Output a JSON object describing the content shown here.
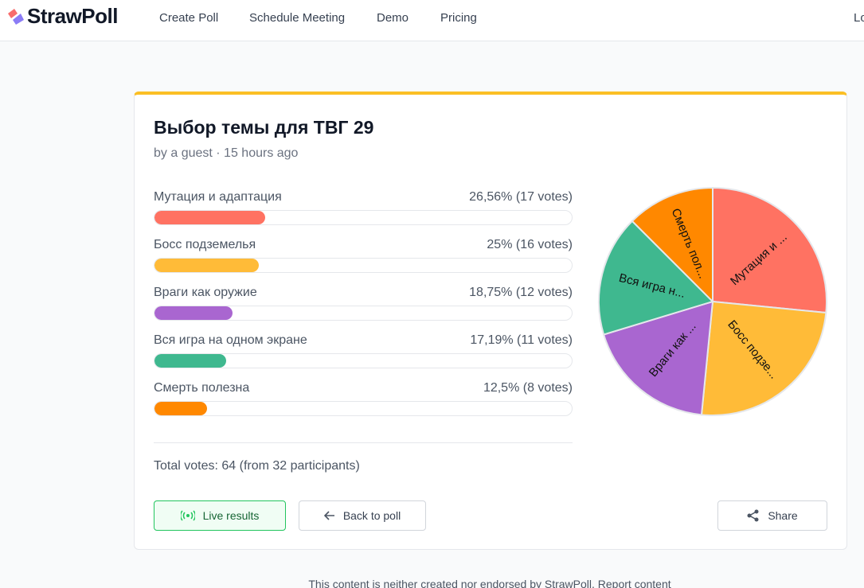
{
  "nav": {
    "logo": "StrawPoll",
    "links": [
      "Create Poll",
      "Schedule Meeting",
      "Demo",
      "Pricing"
    ],
    "login": "Lo"
  },
  "poll": {
    "title": "Выбор темы для ТВГ 29",
    "meta": "by a guest · 15 hours ago",
    "options": [
      {
        "label": "Мутация и адаптация",
        "result": "26,56% (17 votes)",
        "percent": 26.56,
        "votes": 17,
        "pie_label": "Мутация и ...",
        "color": "#ff7262"
      },
      {
        "label": "Босс подземелья",
        "result": "25% (16 votes)",
        "percent": 25,
        "votes": 16,
        "pie_label": "Босс подзе...",
        "color": "#ffbb38"
      },
      {
        "label": "Враги как оружие",
        "result": "18,75% (12 votes)",
        "percent": 18.75,
        "votes": 12,
        "pie_label": "Враги как ...",
        "color": "#a966d0"
      },
      {
        "label": "Вся игра на одном экране",
        "result": "17,19% (11 votes)",
        "percent": 17.19,
        "votes": 11,
        "pie_label": "Вся игра н...",
        "color": "#3fb88f"
      },
      {
        "label": "Смерть полезна",
        "result": "12,5% (8 votes)",
        "percent": 12.5,
        "votes": 8,
        "pie_label": "Смерть пол...",
        "color": "#ff8800"
      }
    ],
    "total": "Total votes: 64 (from 32 participants)"
  },
  "buttons": {
    "live": "Live results",
    "back": "Back to poll",
    "share": "Share"
  },
  "footer": "This content is neither created nor endorsed by StrawPoll. Report content"
}
